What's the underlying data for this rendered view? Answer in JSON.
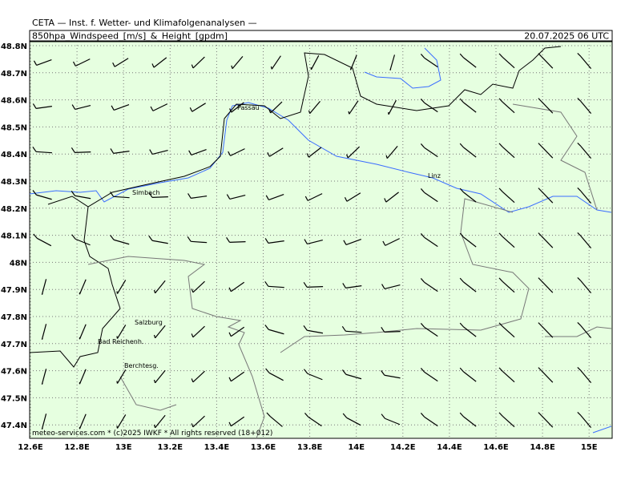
{
  "header": {
    "institute": "CETA — Inst. f. Wetter- und Klimafolgenanalysen —",
    "field": "850hpa_Windspeed_[m/s]_&_Height_[gpdm]",
    "valid_time": "20.07.2025 06 UTC"
  },
  "axes": {
    "lat_labels": [
      "48.8N",
      "48.7N",
      "48.6N",
      "48.5N",
      "48.4N",
      "48.3N",
      "48.2N",
      "48.1N",
      "48N",
      "47.9N",
      "47.8N",
      "47.7N",
      "47.6N",
      "47.5N",
      "47.4N"
    ],
    "lon_labels": [
      "12.6E",
      "12.8E",
      "13E",
      "13.2E",
      "13.4E",
      "13.6E",
      "13.8E",
      "14E",
      "14.2E",
      "14.4E",
      "14.6E",
      "14.8E",
      "15E"
    ]
  },
  "places": [
    "Passau",
    "Linz",
    "Simbach",
    "Salzburg",
    "Bad Reichenh.",
    "Berchtesg."
  ],
  "footer": "meteo-services.com * (c)2025 IWKF * All rights reserved (18+012)"
}
